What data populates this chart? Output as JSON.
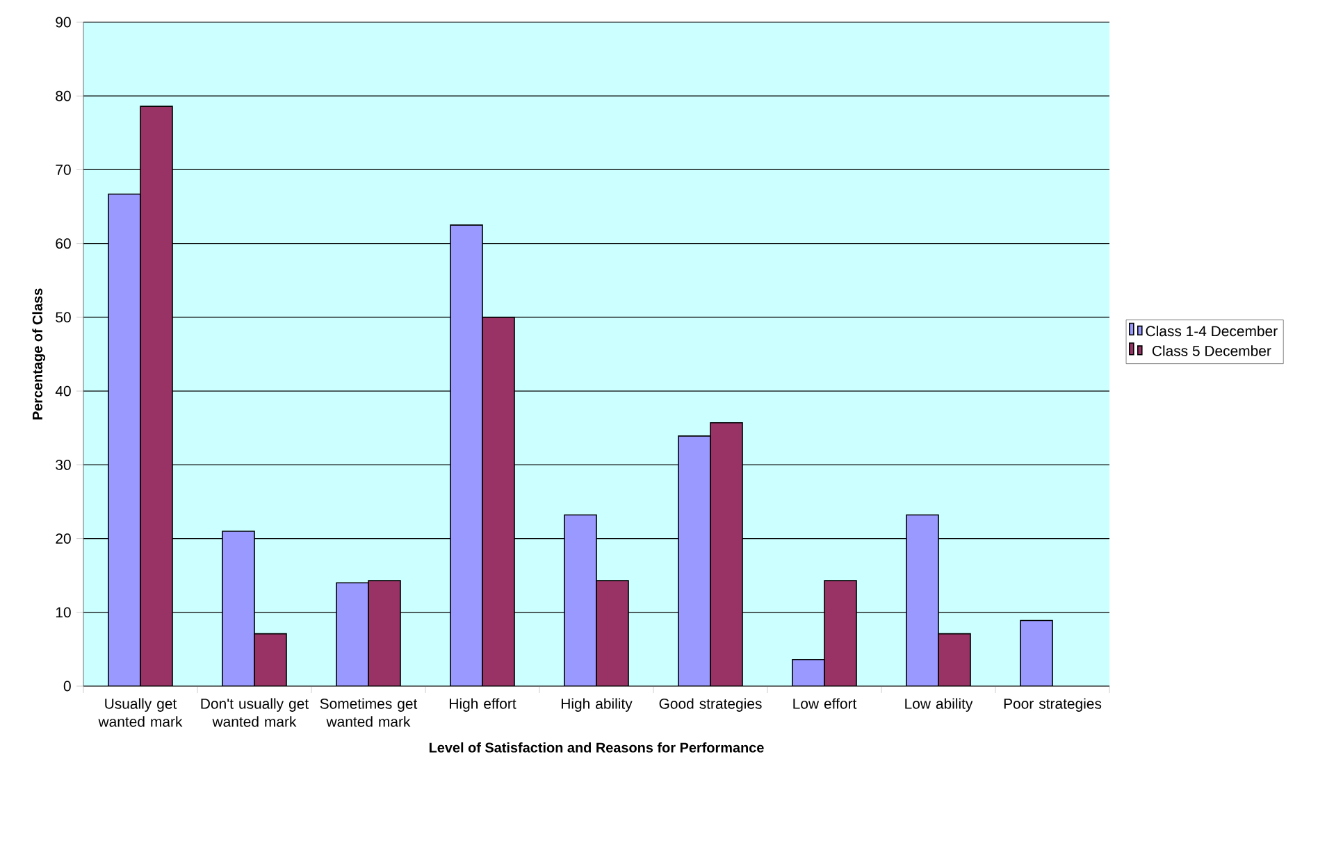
{
  "chart_data": {
    "type": "bar",
    "xlabel": "Level of Satisfaction and Reasons for Performance",
    "ylabel": "Percentage of Class",
    "categories": [
      "Usually get wanted mark",
      "Don't usually get wanted mark",
      "Sometimes get wanted mark",
      "High effort",
      "High ability",
      "Good strategies",
      "Low effort",
      "Low ability",
      "Poor strategies"
    ],
    "series": [
      {
        "name": "Class 1-4 December",
        "color": "#9999ff",
        "values": [
          66.7,
          21,
          14,
          62.5,
          23.2,
          33.9,
          3.6,
          23.2,
          8.9
        ]
      },
      {
        "name": "Class 5 December",
        "color": "#993366",
        "values": [
          78.6,
          7.1,
          14.3,
          50,
          14.3,
          35.7,
          14.3,
          7.1,
          null
        ]
      }
    ],
    "ylim": [
      0,
      90
    ],
    "yticks": [
      0,
      10,
      20,
      30,
      40,
      50,
      60,
      70,
      80,
      90
    ],
    "grid": "y",
    "legend": "right"
  }
}
